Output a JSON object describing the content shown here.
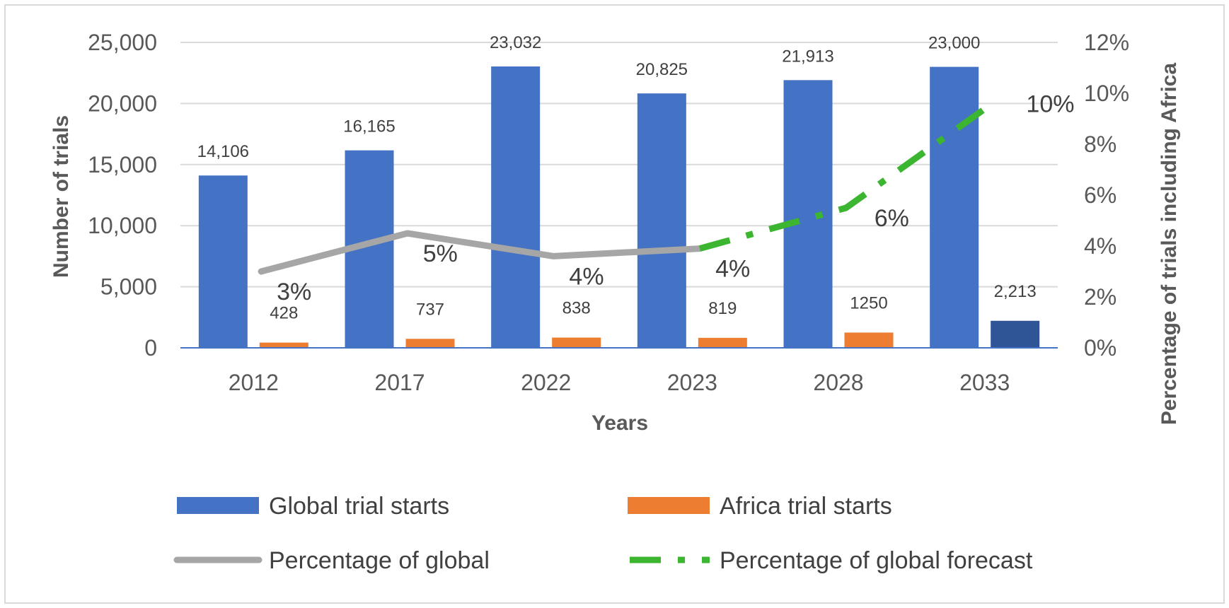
{
  "chart_data": {
    "type": "bar",
    "categories": [
      "2012",
      "2017",
      "2022",
      "2023",
      "2028",
      "2033"
    ],
    "xlabel": "Years",
    "ylabel": "Number of trials",
    "y2label": "Percentage of trials including Africa",
    "ylim": [
      0,
      25000
    ],
    "y2lim": [
      0,
      12
    ],
    "yticks": [
      "0",
      "5,000",
      "10,000",
      "15,000",
      "20,000",
      "25,000"
    ],
    "y2ticks": [
      "0%",
      "2%",
      "4%",
      "6%",
      "8%",
      "10%",
      "12%"
    ],
    "grid": true,
    "legend_position": "bottom",
    "series": [
      {
        "name": "Global trial starts",
        "kind": "bar",
        "axis": "left",
        "color": "#4472c4",
        "values": [
          14106,
          16165,
          23032,
          20825,
          21913,
          23000
        ],
        "labels": [
          "14,106",
          "16,165",
          "23,032",
          "20,825",
          "21,913",
          "23,000"
        ]
      },
      {
        "name": "Africa trial starts",
        "kind": "bar",
        "axis": "left",
        "color": "#ed7d31",
        "highlight_color": "#2f5597",
        "highlight_index": 5,
        "values": [
          428,
          737,
          838,
          819,
          1250,
          2213
        ],
        "labels": [
          "428",
          "737",
          "838",
          "819",
          "1250",
          "2,213"
        ]
      },
      {
        "name": "Percentage of global",
        "kind": "line",
        "axis": "right",
        "color": "#a6a6a6",
        "values": [
          3.0,
          4.5,
          3.6,
          3.9,
          null,
          null
        ],
        "labels": [
          "3%",
          "5%",
          "4%",
          "4%",
          null,
          null
        ]
      },
      {
        "name": "Percentage of global forecast",
        "kind": "dashed-line",
        "axis": "right",
        "color": "#3cb531",
        "values": [
          null,
          null,
          null,
          3.9,
          5.5,
          9.6
        ],
        "labels": [
          null,
          null,
          null,
          null,
          "6%",
          "10%"
        ]
      }
    ]
  }
}
